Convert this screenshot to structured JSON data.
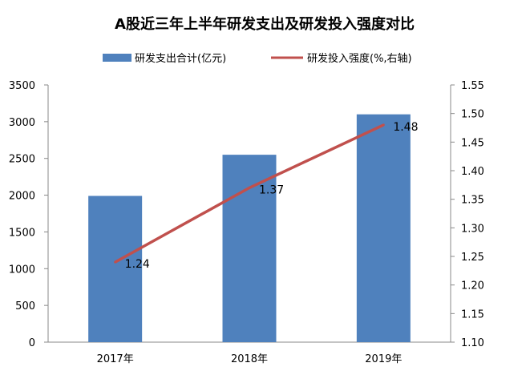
{
  "chart_data": {
    "type": "bar+line",
    "title": "A股近三年上半年研发支出及研发投入强度对比",
    "categories": [
      "2017年",
      "2018年",
      "2019年"
    ],
    "series": [
      {
        "name": "研发支出合计(亿元)",
        "type": "bar",
        "axis": "left",
        "values": [
          1990,
          2550,
          3100
        ],
        "color": "#4F81BD"
      },
      {
        "name": "研发投入强度(%,右轴)",
        "type": "line",
        "axis": "right",
        "values": [
          1.24,
          1.37,
          1.48
        ],
        "color": "#C0504D",
        "data_labels": [
          "1.24",
          "1.37",
          "1.48"
        ]
      }
    ],
    "y_left": {
      "range": [
        0,
        3500
      ],
      "ticks": [
        "0",
        "500",
        "1000",
        "1500",
        "2000",
        "2500",
        "3000",
        "3500"
      ]
    },
    "y_right": {
      "range": [
        1.1,
        1.55
      ],
      "ticks": [
        "1.10",
        "1.15",
        "1.20",
        "1.25",
        "1.30",
        "1.35",
        "1.40",
        "1.45",
        "1.50",
        "1.55"
      ]
    },
    "legend": "top",
    "grid": false
  }
}
